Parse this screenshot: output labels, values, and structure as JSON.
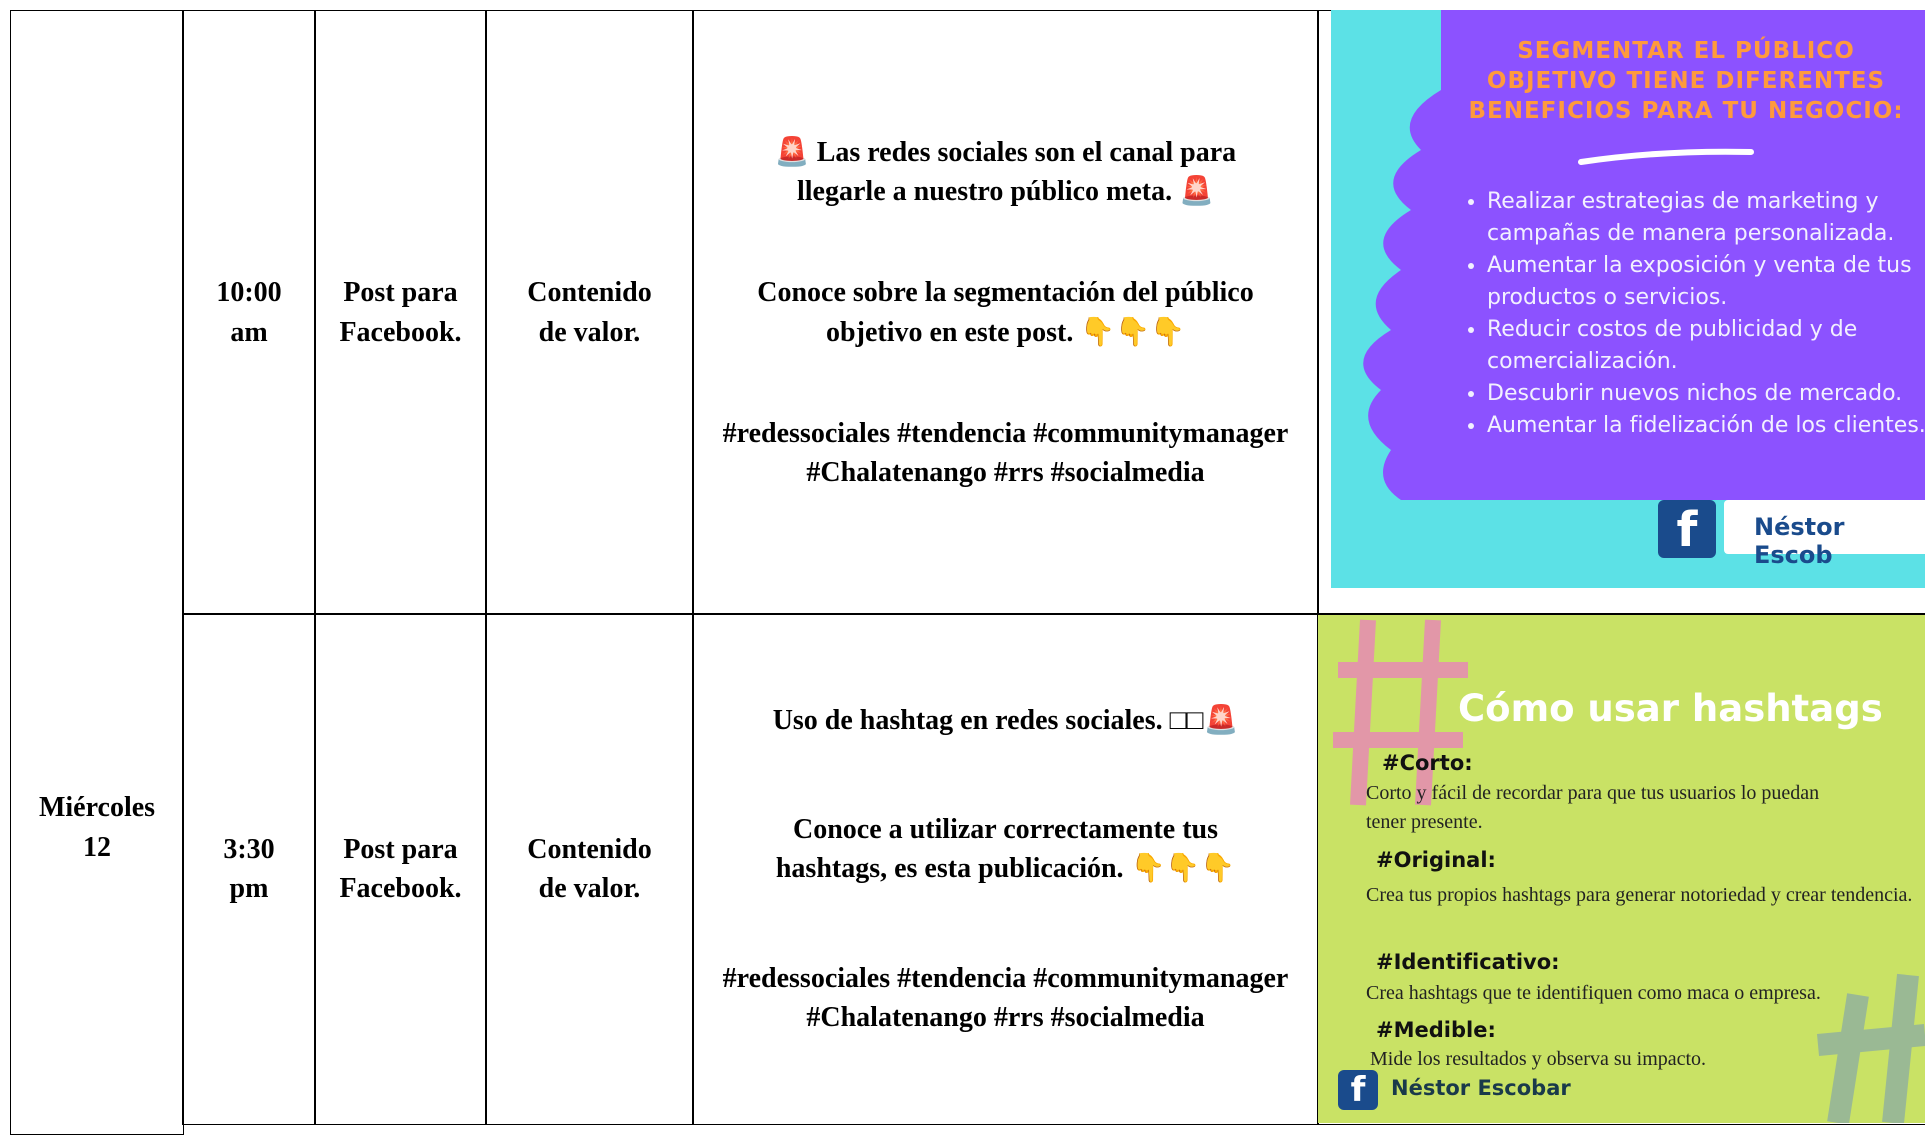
{
  "table": {
    "day": "Miércoles 12",
    "rows": [
      {
        "time": "10:00 am",
        "type": "Post para Facebook.",
        "category": "Contenido de valor.",
        "copy": [
          "🚨 Las redes sociales son el canal para llegarle a nuestro público meta. 🚨",
          "Conoce sobre la segmentación del público objetivo en este post. 👇👇👇",
          "#redessociales #tendencia #communitymanager #Chalatenango #rrs #socialmedia"
        ],
        "image": {
          "heading": "SEGMENTAR EL PÚBLICO OBJETIVO TIENE DIFERENTES BENEFICIOS PARA TU NEGOCIO:",
          "bullets": [
            "Realizar estrategias de marketing y campañas de manera personalizada.",
            "Aumentar la exposición y venta de tus productos o servicios.",
            "Reducir costos de publicidad y de comercialización.",
            "Descubrir nuevos nichos de mercado.",
            "Aumentar la fidelización de los clientes."
          ],
          "brand": "Néstor Escob"
        }
      },
      {
        "time": "3:30 pm",
        "type": "Post para Facebook.",
        "category": "Contenido de valor.",
        "copy": [
          "Uso de hashtag en redes sociales. □□🚨",
          "Conoce a utilizar correctamente tus hashtags, es esta publicación. 👇👇👇",
          "#redessociales #tendencia #communitymanager #Chalatenango #rrs #socialmedia"
        ],
        "image": {
          "heading": "Cómo usar hashtags",
          "items": [
            {
              "title": "#Corto:",
              "text": "Corto y fácil de recordar para que tus usuarios lo puedan tener presente."
            },
            {
              "title": "#Original:",
              "text": "Crea tus propios hashtags para generar notoriedad y crear tendencia."
            },
            {
              "title": "#Identificativo:",
              "text": "Crea hashtags que te identifiquen como maca o empresa."
            },
            {
              "title": "#Medible:",
              "text": "Mide los resultados y observa su impacto."
            }
          ],
          "brand": "Néstor Escobar"
        }
      }
    ]
  }
}
